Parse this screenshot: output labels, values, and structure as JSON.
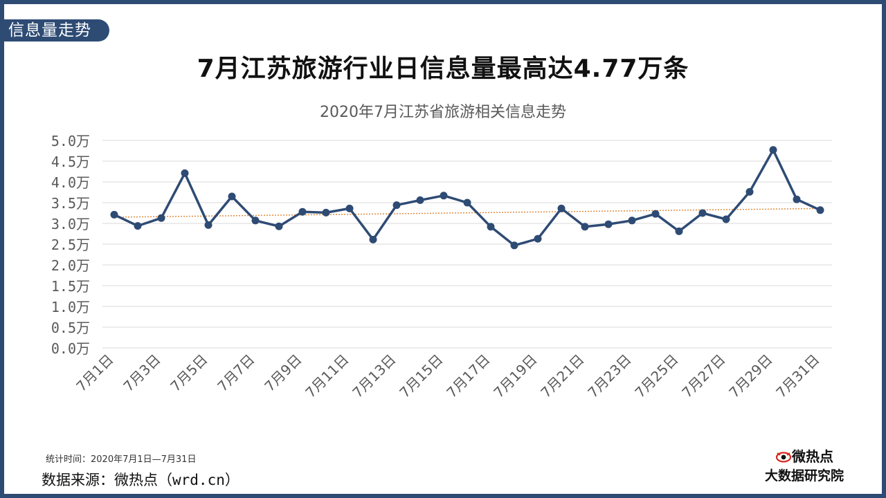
{
  "section_tab": "信息量走势",
  "headline": "7月江苏旅游行业日信息量最高达4.77万条",
  "footer": {
    "period": "统计时间：2020年7月1日—7月31日",
    "source": "数据来源：微热点（wrd.cn）"
  },
  "brand": {
    "top": "微热点",
    "bottom": "大数据研究院"
  },
  "colors": {
    "frame": "#2e4b74",
    "line": "#2e4b74",
    "trend": "#e08a3c",
    "grid": "#d9d9d9"
  },
  "chart_data": {
    "type": "line",
    "title": "2020年7月江苏省旅游相关信息走势",
    "y_unit": "万",
    "ylim": [
      0,
      5
    ],
    "y_ticks": [
      0,
      0.5,
      1,
      1.5,
      2,
      2.5,
      3,
      3.5,
      4,
      4.5,
      5
    ],
    "y_tick_labels": [
      "0.0万",
      "0.5万",
      "1.0万",
      "1.5万",
      "2.0万",
      "2.5万",
      "3.0万",
      "3.5万",
      "4.0万",
      "4.5万",
      "5.0万"
    ],
    "categories": [
      "7月1日",
      "7月2日",
      "7月3日",
      "7月4日",
      "7月5日",
      "7月6日",
      "7月7日",
      "7月8日",
      "7月9日",
      "7月10日",
      "7月11日",
      "7月12日",
      "7月13日",
      "7月14日",
      "7月15日",
      "7月16日",
      "7月17日",
      "7月18日",
      "7月19日",
      "7月20日",
      "7月21日",
      "7月22日",
      "7月23日",
      "7月24日",
      "7月25日",
      "7月26日",
      "7月27日",
      "7月28日",
      "7月29日",
      "7月30日",
      "7月31日"
    ],
    "x_tick_labels": [
      "7月1日",
      "7月3日",
      "7月5日",
      "7月7日",
      "7月9日",
      "7月11日",
      "7月13日",
      "7月15日",
      "7月17日",
      "7月19日",
      "7月21日",
      "7月23日",
      "7月25日",
      "7月27日",
      "7月29日",
      "7月31日"
    ],
    "values": [
      3.21,
      2.94,
      3.13,
      4.21,
      2.96,
      3.65,
      3.07,
      2.93,
      3.28,
      3.26,
      3.36,
      2.61,
      3.44,
      3.56,
      3.67,
      3.5,
      2.92,
      2.47,
      2.63,
      3.36,
      2.92,
      2.98,
      3.07,
      3.23,
      2.81,
      3.25,
      3.1,
      3.76,
      4.77,
      3.58,
      3.32
    ],
    "trendline": {
      "type": "linear",
      "start": 3.15,
      "end": 3.36
    },
    "grid": true,
    "legend": false
  }
}
